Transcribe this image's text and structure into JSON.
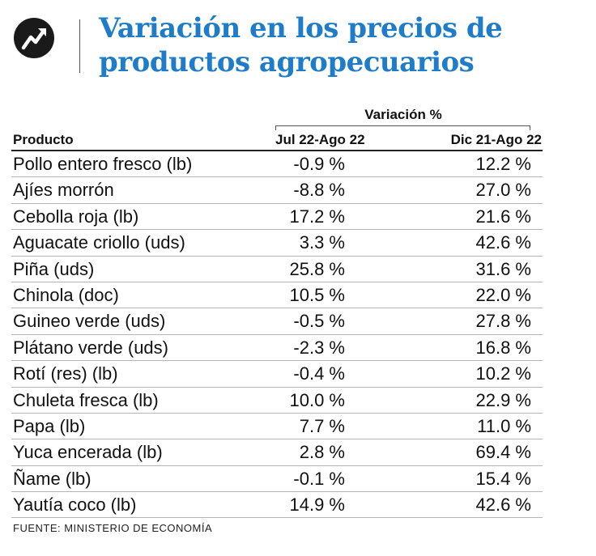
{
  "title": "Variación en los precios de productos agropecuarios",
  "group_header": "Variación %",
  "columns": [
    "Producto",
    "Jul 22-Ago 22",
    "Dic 21-Ago 22"
  ],
  "source": "FUENTE: MINISTERIO DE ECONOMÍA",
  "colors": {
    "title": "#1e7cc8",
    "logo": "#1a1a1a"
  },
  "logo_icon": "trend-up-arrow-icon",
  "chart_data": {
    "type": "table",
    "title": "Variación en los precios de productos agropecuarios",
    "columns": [
      "Producto",
      "Jul 22-Ago 22",
      "Dic 21-Ago 22"
    ],
    "rows": [
      [
        "Pollo entero fresco (lb)",
        "-0.9 %",
        "12.2 %"
      ],
      [
        "Ajíes morrón",
        "-8.8 %",
        "27.0 %"
      ],
      [
        "Cebolla roja (lb)",
        "17.2 %",
        "21.6 %"
      ],
      [
        "Aguacate criollo (uds)",
        "3.3 %",
        "42.6 %"
      ],
      [
        "Piña (uds)",
        "25.8 %",
        "31.6 %"
      ],
      [
        "Chinola (doc)",
        "10.5 %",
        "22.0 %"
      ],
      [
        "Guineo verde (uds)",
        "-0.5 %",
        "27.8 %"
      ],
      [
        "Plátano verde (uds)",
        "-2.3 %",
        "16.8 %"
      ],
      [
        "Rotí (res) (lb)",
        "-0.4 %",
        "10.2 %"
      ],
      [
        "Chuleta fresca (lb)",
        "10.0 %",
        "22.9 %"
      ],
      [
        "Papa (lb)",
        "7.7 %",
        "11.0 %"
      ],
      [
        "Yuca encerada (lb)",
        "2.8 %",
        "69.4 %"
      ],
      [
        "Ñame (lb)",
        "-0.1 %",
        "15.4 %"
      ],
      [
        "Yautía coco (lb)",
        "14.9 %",
        "42.6 %"
      ]
    ]
  }
}
